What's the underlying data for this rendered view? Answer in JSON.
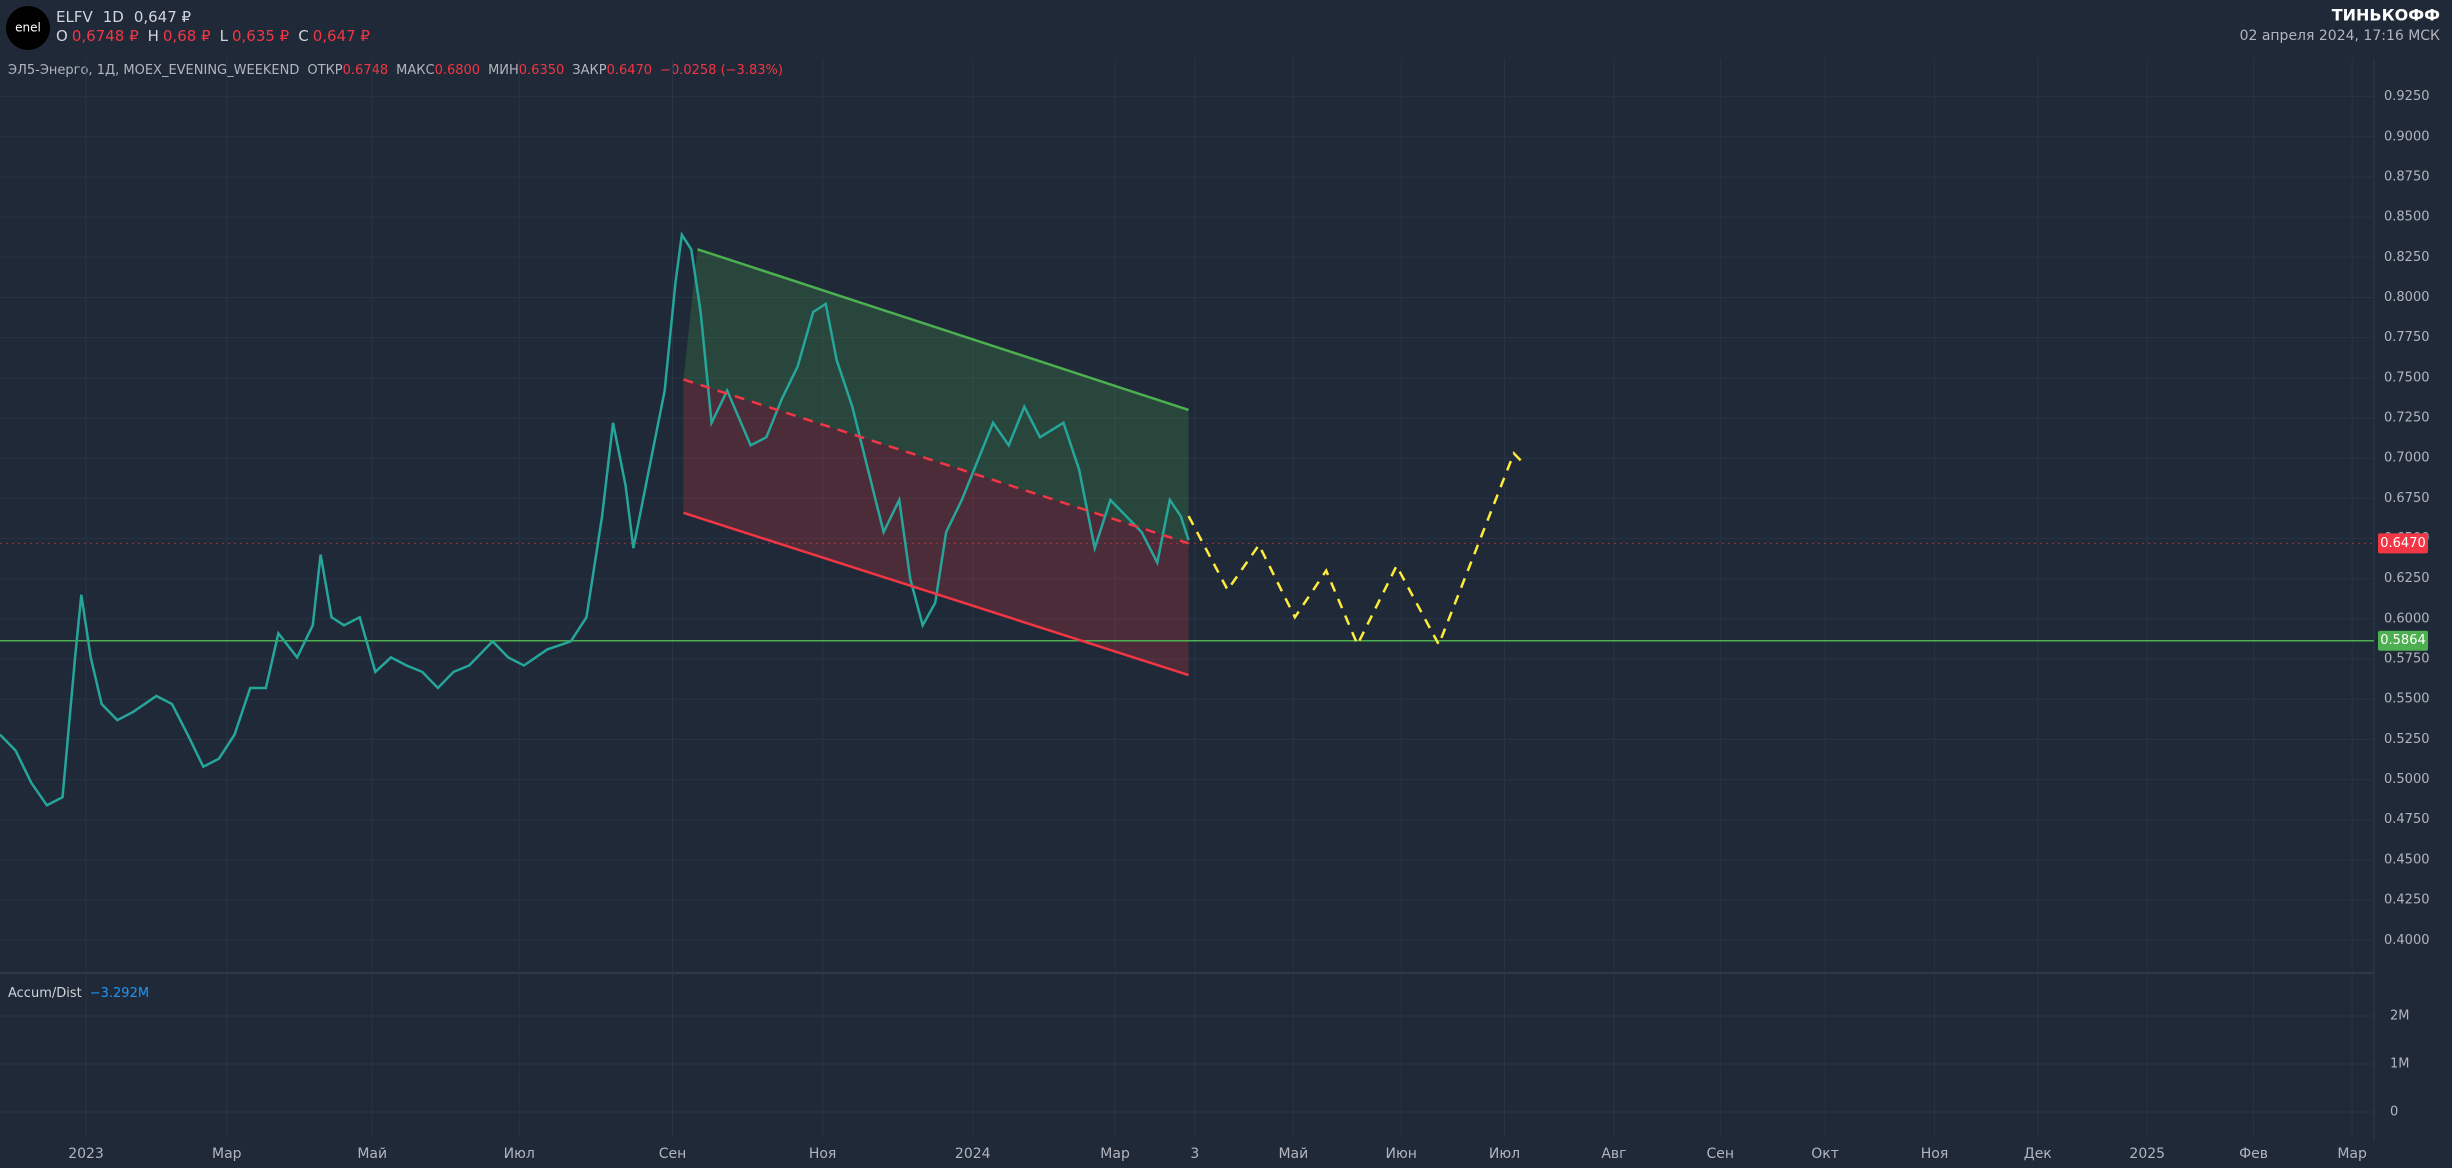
{
  "header": {
    "symbol": "ELFV",
    "interval": "1D",
    "price": "0,647 ₽",
    "o_label": "O",
    "o": "0,6748 ₽",
    "h_label": "H",
    "h": "0,68 ₽",
    "l_label": "L",
    "l": "0,635 ₽",
    "c_label": "C",
    "c": "0,647 ₽",
    "brand": "ТИНЬКОФФ",
    "datetime": "02 апреля 2024, 17:16 МСК"
  },
  "legend": {
    "name": "ЭЛ5-Энерго, 1Д, MOEX_EVENING_WEEKEND",
    "open_label": "ОТКР",
    "open": "0.6748",
    "high_label": "МАКС",
    "high": "0.6800",
    "low_label": "МИН",
    "low": "0.6350",
    "close_label": "ЗАКР",
    "close": "0.6470",
    "change": "−0.0258 (−3.83%)"
  },
  "indicator": {
    "name": "Accum/Dist",
    "value": "−3.292M",
    "ylim": [
      -520000,
      2770000
    ],
    "yticks": [
      {
        "value": 2000000,
        "label": "2M"
      },
      {
        "value": 1000000,
        "label": "1M"
      },
      0
    ]
  },
  "chart_data": {
    "type": "line",
    "xlim": [
      0,
      759
    ],
    "ylim": [
      0.3815,
      0.9484
    ],
    "xticks": [
      {
        "value": 27.5,
        "label": "2023"
      },
      {
        "value": 72.5,
        "label": "Мар"
      },
      {
        "value": 119,
        "label": "Май"
      },
      {
        "value": 166,
        "label": "Июл"
      },
      {
        "value": 215,
        "label": "Сен"
      },
      {
        "value": 263,
        "label": "Ноя"
      },
      {
        "value": 311,
        "label": "2024"
      },
      {
        "value": 356.5,
        "label": "Мар"
      },
      {
        "value": 382,
        "label": "3"
      },
      {
        "value": 413.5,
        "label": "Май"
      },
      {
        "value": 448,
        "label": "Июн"
      },
      {
        "value": 481,
        "label": "Июл"
      },
      {
        "value": 516,
        "label": "Авг"
      },
      {
        "value": 550,
        "label": "Сен"
      },
      {
        "value": 583.5,
        "label": "Окт"
      },
      {
        "value": 618.5,
        "label": "Ноя"
      },
      {
        "value": 651.5,
        "label": "Дек"
      },
      {
        "value": 686.5,
        "label": "2025"
      },
      {
        "value": 720.5,
        "label": "Фев"
      },
      {
        "value": 752,
        "label": "Мар"
      }
    ],
    "yticks": [
      {
        "value": 0.925,
        "label": "0.9250"
      },
      {
        "value": 0.9,
        "label": "0.9000"
      },
      {
        "value": 0.875,
        "label": "0.8750"
      },
      {
        "value": 0.85,
        "label": "0.8500"
      },
      {
        "value": 0.825,
        "label": "0.8250"
      },
      {
        "value": 0.8,
        "label": "0.8000"
      },
      {
        "value": 0.775,
        "label": "0.7750"
      },
      {
        "value": 0.75,
        "label": "0.7500"
      },
      {
        "value": 0.725,
        "label": "0.7250"
      },
      {
        "value": 0.7,
        "label": "0.7000"
      },
      {
        "value": 0.675,
        "label": "0.6750"
      },
      {
        "value": 0.65,
        "label": "0.6500"
      },
      {
        "value": 0.625,
        "label": "0.6250"
      },
      {
        "value": 0.6,
        "label": "0.6000"
      },
      {
        "value": 0.575,
        "label": "0.5750"
      },
      {
        "value": 0.55,
        "label": "0.5500"
      },
      {
        "value": 0.525,
        "label": "0.5250"
      },
      {
        "value": 0.5,
        "label": "0.5000"
      },
      {
        "value": 0.475,
        "label": "0.4750"
      },
      {
        "value": 0.45,
        "label": "0.4500"
      },
      {
        "value": 0.425,
        "label": "0.4250"
      },
      {
        "value": 0.4,
        "label": "0.4000"
      }
    ],
    "grid": true,
    "x": [
      0,
      5,
      10,
      15,
      20,
      24,
      26,
      29,
      32.5,
      37.5,
      42.5,
      50,
      55,
      60,
      65,
      70,
      75,
      80,
      85,
      89,
      95,
      100,
      102.5,
      106,
      110,
      115,
      120,
      125,
      130,
      135,
      140,
      145,
      150,
      157.5,
      162.5,
      167.5,
      175,
      182.5,
      187.5,
      192.5,
      196,
      200,
      202.5,
      207.5,
      212.5,
      216,
      218,
      221,
      224,
      227.5,
      232.5,
      240,
      245,
      250,
      255,
      260,
      264,
      267.5,
      272.5,
      277.5,
      282.5,
      287.5,
      291,
      295,
      299,
      302.5,
      307.5,
      312.5,
      317.5,
      322.5,
      327.5,
      332.5,
      340,
      345,
      350,
      355,
      360,
      365,
      370,
      374,
      377.5,
      380
    ],
    "series": [
      {
        "color": "#26a69a",
        "values": [
          0.528,
          0.518,
          0.498,
          0.484,
          0.489,
          0.576,
          0.615,
          0.576,
          0.547,
          0.537,
          0.542,
          0.552,
          0.547,
          0.528,
          0.508,
          0.513,
          0.528,
          0.557,
          0.557,
          0.591,
          0.576,
          0.596,
          0.64,
          0.601,
          0.596,
          0.601,
          0.567,
          0.576,
          0.571,
          0.567,
          0.557,
          0.567,
          0.571,
          0.586,
          0.576,
          0.571,
          0.581,
          0.586,
          0.601,
          0.664,
          0.722,
          0.683,
          0.644,
          0.693,
          0.742,
          0.81,
          0.839,
          0.83,
          0.791,
          0.722,
          0.742,
          0.708,
          0.713,
          0.737,
          0.757,
          0.791,
          0.796,
          0.761,
          0.732,
          0.693,
          0.654,
          0.674,
          0.625,
          0.596,
          0.61,
          0.654,
          0.674,
          0.698,
          0.722,
          0.708,
          0.732,
          0.713,
          0.722,
          0.693,
          0.644,
          0.674,
          0.664,
          0.654,
          0.635,
          0.674,
          0.664,
          0.649
        ]
      }
    ],
    "channel": {
      "upper": {
        "color": "#4caf50",
        "x": [
          223,
          380
        ],
        "values": [
          0.83,
          0.73
        ]
      },
      "middle": {
        "color": "#f23645",
        "x": [
          218.5,
          380
        ],
        "values": [
          0.749,
          0.647
        ]
      },
      "lower": {
        "color": "#f23645",
        "x": [
          218.5,
          380
        ],
        "values": [
          0.666,
          0.565
        ]
      }
    },
    "forecast": {
      "color": "#ffeb3b",
      "x": [
        380,
        392.5,
        402.5,
        414,
        424,
        434,
        446.5,
        460,
        484,
        487.5
      ],
      "values": [
        0.664,
        0.618,
        0.646,
        0.601,
        0.63,
        0.584,
        0.633,
        0.584,
        0.703,
        0.696
      ]
    },
    "support": {
      "color": "#4caf50",
      "value": 0.5864
    },
    "last_price": {
      "color": "#f23645",
      "value": 0.647,
      "label": "0.6470"
    }
  }
}
